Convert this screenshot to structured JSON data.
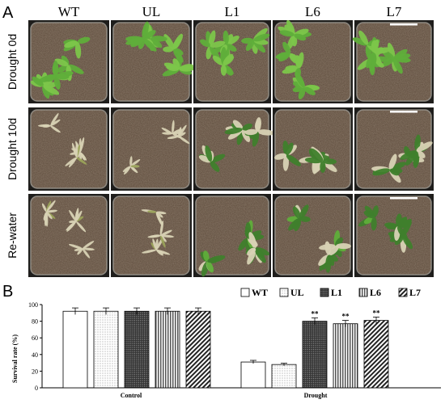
{
  "panel_a": {
    "letter": "A",
    "genotypes": [
      "WT",
      "UL",
      "L1",
      "L6",
      "L7"
    ],
    "rows": [
      {
        "label": "Drought 0d",
        "state": "healthy"
      },
      {
        "label": "Drought 10d",
        "state": "stressed"
      },
      {
        "label": "Re-water",
        "state": "recovered"
      }
    ],
    "colors": {
      "tray": "#1f1e1c",
      "soil": "#5c4a3a",
      "leaf_healthy": "#5fae3a",
      "leaf_dead": "#d8d2b4",
      "leaf_dark": "#3f7f2c"
    }
  },
  "panel_b": {
    "letter": "B",
    "chart_data": {
      "type": "bar",
      "categories": [
        "Control",
        "Drought"
      ],
      "ylabel": "Survival rate (%)",
      "xlabel": "",
      "ylim": [
        0,
        100
      ],
      "yticks": [
        0,
        20,
        40,
        60,
        80,
        100
      ],
      "legend_position": "top-right",
      "series": [
        {
          "name": "WT",
          "pattern": "blank",
          "values": [
            92,
            31
          ],
          "errors": [
            4,
            2
          ]
        },
        {
          "name": "UL",
          "pattern": "dots",
          "values": [
            92,
            28
          ],
          "errors": [
            4,
            1.5
          ]
        },
        {
          "name": "L1",
          "pattern": "dense",
          "values": [
            92,
            80
          ],
          "errors": [
            4,
            4
          ]
        },
        {
          "name": "L6",
          "pattern": "vertical",
          "values": [
            92,
            77
          ],
          "errors": [
            4,
            4
          ]
        },
        {
          "name": "L7",
          "pattern": "diagonal",
          "values": [
            92,
            81
          ],
          "errors": [
            4,
            4
          ]
        }
      ],
      "annotations": [
        {
          "category": "Drought",
          "series": "L1",
          "text": "**"
        },
        {
          "category": "Drought",
          "series": "L6",
          "text": "**"
        },
        {
          "category": "Drought",
          "series": "L7",
          "text": "**"
        }
      ]
    }
  }
}
